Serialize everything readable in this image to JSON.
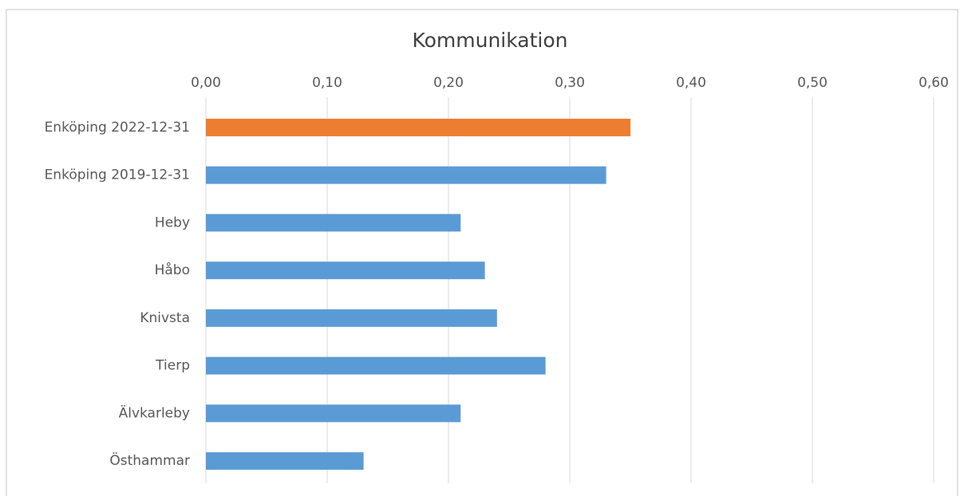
{
  "chart_data": {
    "type": "bar",
    "orientation": "horizontal",
    "title": "Kommunikation",
    "categories": [
      "Enköping 2022-12-31",
      "Enköping 2019-12-31",
      "Heby",
      "Håbo",
      "Knivsta",
      "Tierp",
      "Älvkarleby",
      "Östhammar"
    ],
    "values": [
      0.35,
      0.33,
      0.21,
      0.23,
      0.24,
      0.28,
      0.21,
      0.13
    ],
    "colors": [
      "#ed7d31",
      "#5b9bd5",
      "#5b9bd5",
      "#5b9bd5",
      "#5b9bd5",
      "#5b9bd5",
      "#5b9bd5",
      "#5b9bd5"
    ],
    "xlim": [
      0,
      0.6
    ],
    "xticks": [
      {
        "value": 0,
        "label": "0,00"
      },
      {
        "value": 0.1,
        "label": "0,10"
      },
      {
        "value": 0.2,
        "label": "0,20"
      },
      {
        "value": 0.3,
        "label": "0,30"
      },
      {
        "value": 0.4,
        "label": "0,40"
      },
      {
        "value": 0.5,
        "label": "0,50"
      },
      {
        "value": 0.6,
        "label": "0,60"
      }
    ],
    "grid": true
  }
}
